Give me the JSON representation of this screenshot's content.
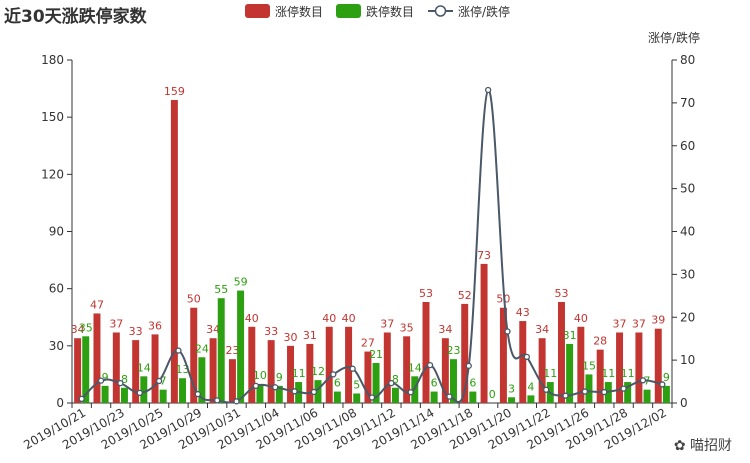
{
  "page_title": "近30天涨跌停家数",
  "watermark": "喵招财",
  "chart_data": {
    "type": "bar",
    "title": "近30天涨跌停家数",
    "left_ylim": [
      0,
      180
    ],
    "right_ylim": [
      0,
      80
    ],
    "right_axis_name": "涨停/跌停",
    "left_ticks": [
      0,
      30,
      60,
      90,
      120,
      150,
      180
    ],
    "right_ticks": [
      0,
      10,
      20,
      30,
      40,
      50,
      60,
      70,
      80
    ],
    "legend_position": "top-center",
    "x_tick_labels": [
      "2019/10/21",
      "2019/10/23",
      "2019/10/25",
      "2019/10/29",
      "2019/10/31",
      "2019/11/04",
      "2019/11/06",
      "2019/11/08",
      "2019/11/12",
      "2019/11/14",
      "2019/11/18",
      "2019/11/20",
      "2019/11/22",
      "2019/11/26",
      "2019/11/28",
      "2019/12/02"
    ],
    "categories": [
      "2019/10/21",
      "2019/10/22",
      "2019/10/23",
      "2019/10/24",
      "2019/10/25",
      "2019/10/28",
      "2019/10/29",
      "2019/10/30",
      "2019/10/31",
      "2019/11/01",
      "2019/11/04",
      "2019/11/05",
      "2019/11/06",
      "2019/11/07",
      "2019/11/08",
      "2019/11/11",
      "2019/11/12",
      "2019/11/13",
      "2019/11/14",
      "2019/11/15",
      "2019/11/18",
      "2019/11/19",
      "2019/11/20",
      "2019/11/21",
      "2019/11/22",
      "2019/11/25",
      "2019/11/26",
      "2019/11/27",
      "2019/11/28",
      "2019/11/29",
      "2019/12/02"
    ],
    "series": [
      {
        "name": "涨停数目",
        "color": "#c23531",
        "values": [
          34,
          47,
          37,
          33,
          36,
          159,
          50,
          34,
          23,
          40,
          33,
          30,
          31,
          40,
          40,
          27,
          37,
          35,
          53,
          34,
          52,
          73,
          50,
          43,
          34,
          53,
          40,
          28,
          37,
          37,
          39
        ]
      },
      {
        "name": "跌停数目",
        "color": "#2ca010",
        "values": [
          35,
          9,
          8,
          14,
          7,
          13,
          24,
          55,
          59,
          10,
          9,
          11,
          12,
          6,
          5,
          21,
          8,
          14,
          6,
          23,
          6,
          0,
          3,
          4,
          11,
          31,
          15,
          11,
          11,
          7,
          9
        ]
      },
      {
        "name": "涨停/跌停",
        "color": "#4a5868",
        "axis": "right",
        "values": [
          0.97,
          5.22,
          4.63,
          2.36,
          5.14,
          12.23,
          2.08,
          0.62,
          0.39,
          4.0,
          3.67,
          2.73,
          2.58,
          6.67,
          8.0,
          1.29,
          4.63,
          2.5,
          8.83,
          1.48,
          8.67,
          73,
          16.67,
          10.75,
          3.09,
          1.71,
          2.67,
          2.55,
          3.36,
          5.29,
          4.33
        ]
      }
    ]
  }
}
